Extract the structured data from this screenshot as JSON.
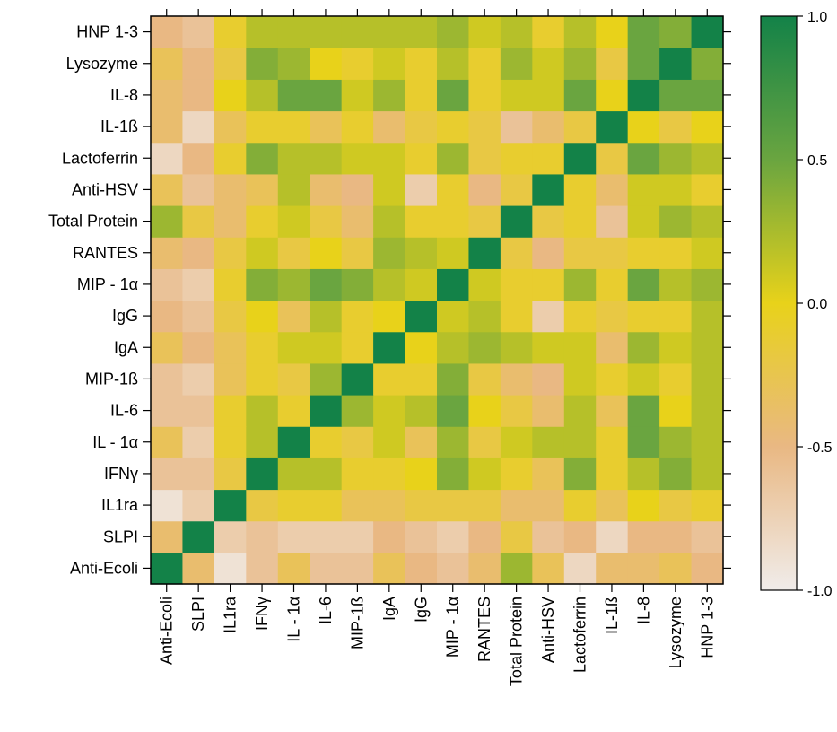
{
  "chart_data": {
    "type": "heatmap",
    "title": "",
    "xlabel": "",
    "ylabel": "",
    "x_categories": [
      "Anti-Ecoli",
      "SLPI",
      "IL1ra",
      "IFNγ",
      "IL - 1α",
      "IL-6",
      "MIP-1ß",
      "IgA",
      "IgG",
      "MIP - 1α",
      "RANTES",
      "Total Protein",
      "Anti-HSV",
      "Lactoferrin",
      "IL-1ß",
      "IL-8",
      "Lysozyme",
      "HNP 1-3"
    ],
    "y_categories_bottom_to_top": [
      "Anti-Ecoli",
      "SLPI",
      "IL1ra",
      "IFNγ",
      "IL - 1α",
      "IL-6",
      "MIP-1ß",
      "IgA",
      "IgG",
      "MIP - 1α",
      "RANTES",
      "Total Protein",
      "Anti-HSV",
      "Lactoferrin",
      "IL-1ß",
      "IL-8",
      "Lysozyme",
      "HNP 1-3"
    ],
    "values_rows_bottom_to_top": [
      [
        1.0,
        -0.4,
        -0.9,
        -0.6,
        -0.3,
        -0.6,
        -0.6,
        -0.3,
        -0.5,
        -0.6,
        -0.4,
        0.3,
        -0.3,
        -0.8,
        -0.4,
        -0.4,
        -0.3,
        -0.5
      ],
      [
        -0.4,
        1.0,
        -0.7,
        -0.6,
        -0.7,
        -0.7,
        -0.7,
        -0.5,
        -0.6,
        -0.7,
        -0.5,
        -0.2,
        -0.6,
        -0.5,
        -0.8,
        -0.5,
        -0.5,
        -0.6
      ],
      [
        -0.9,
        -0.7,
        1.0,
        -0.2,
        -0.1,
        -0.1,
        -0.3,
        -0.3,
        -0.2,
        -0.2,
        -0.2,
        -0.4,
        -0.4,
        -0.1,
        -0.3,
        0.0,
        -0.2,
        -0.1
      ],
      [
        -0.6,
        -0.6,
        -0.2,
        1.0,
        0.2,
        0.2,
        -0.1,
        -0.1,
        0.0,
        0.4,
        0.1,
        -0.1,
        -0.3,
        0.4,
        -0.1,
        0.2,
        0.4,
        0.2
      ],
      [
        -0.3,
        -0.7,
        -0.1,
        0.2,
        1.0,
        -0.1,
        -0.2,
        0.1,
        -0.3,
        0.3,
        -0.2,
        0.1,
        0.2,
        0.2,
        -0.1,
        0.5,
        0.3,
        0.2
      ],
      [
        -0.6,
        -0.6,
        -0.1,
        0.2,
        -0.1,
        1.0,
        0.3,
        0.1,
        0.2,
        0.5,
        0.0,
        -0.2,
        -0.4,
        0.2,
        -0.3,
        0.5,
        0.0,
        0.2
      ],
      [
        -0.6,
        -0.7,
        -0.3,
        -0.1,
        -0.2,
        0.3,
        1.0,
        -0.1,
        -0.1,
        0.4,
        -0.2,
        -0.4,
        -0.5,
        0.1,
        -0.1,
        0.1,
        -0.1,
        0.2
      ],
      [
        -0.3,
        -0.5,
        -0.3,
        -0.1,
        0.1,
        0.1,
        -0.1,
        1.0,
        0.0,
        0.2,
        0.3,
        0.2,
        0.1,
        0.1,
        -0.4,
        0.3,
        0.1,
        0.2
      ],
      [
        -0.5,
        -0.6,
        -0.2,
        0.0,
        -0.3,
        0.2,
        -0.1,
        0.0,
        1.0,
        0.1,
        0.2,
        -0.1,
        -0.7,
        -0.1,
        -0.2,
        -0.1,
        -0.1,
        0.2
      ],
      [
        -0.6,
        -0.7,
        -0.1,
        0.4,
        0.3,
        0.5,
        0.4,
        0.2,
        0.1,
        1.0,
        0.1,
        -0.1,
        -0.1,
        0.3,
        -0.1,
        0.5,
        0.2,
        0.3
      ],
      [
        -0.4,
        -0.5,
        -0.2,
        0.1,
        -0.2,
        0.0,
        -0.2,
        0.3,
        0.2,
        0.1,
        1.0,
        -0.2,
        -0.5,
        -0.2,
        -0.2,
        -0.1,
        -0.1,
        0.1
      ],
      [
        0.3,
        -0.2,
        -0.4,
        -0.1,
        0.1,
        -0.2,
        -0.4,
        0.2,
        -0.1,
        -0.1,
        -0.2,
        1.0,
        -0.2,
        -0.1,
        -0.6,
        0.1,
        0.3,
        0.2
      ],
      [
        -0.3,
        -0.6,
        -0.4,
        -0.3,
        0.2,
        -0.4,
        -0.5,
        0.1,
        -0.7,
        -0.1,
        -0.5,
        -0.2,
        1.0,
        -0.1,
        -0.4,
        0.1,
        0.1,
        -0.1
      ],
      [
        -0.8,
        -0.5,
        -0.1,
        0.4,
        0.2,
        0.2,
        0.1,
        0.1,
        -0.1,
        0.3,
        -0.2,
        -0.1,
        -0.1,
        1.0,
        -0.2,
        0.5,
        0.3,
        0.2
      ],
      [
        -0.4,
        -0.8,
        -0.3,
        -0.1,
        -0.1,
        -0.3,
        -0.1,
        -0.4,
        -0.2,
        -0.1,
        -0.2,
        -0.6,
        -0.4,
        -0.2,
        1.0,
        0.0,
        -0.2,
        0.0
      ],
      [
        -0.4,
        -0.5,
        0.0,
        0.2,
        0.5,
        0.5,
        0.1,
        0.3,
        -0.1,
        0.5,
        -0.1,
        0.1,
        0.1,
        0.5,
        0.0,
        1.0,
        0.5,
        0.5
      ],
      [
        -0.3,
        -0.5,
        -0.2,
        0.4,
        0.3,
        0.0,
        -0.1,
        0.1,
        -0.1,
        0.2,
        -0.1,
        0.3,
        0.1,
        0.3,
        -0.2,
        0.5,
        1.0,
        0.4
      ],
      [
        -0.5,
        -0.6,
        -0.1,
        0.2,
        0.2,
        0.2,
        0.2,
        0.2,
        0.2,
        0.3,
        0.1,
        0.2,
        -0.1,
        0.2,
        0.0,
        0.5,
        0.4,
        1.0
      ]
    ],
    "color_scale": {
      "min": -1.0,
      "max": 1.0,
      "stops": [
        {
          "value": -1.0,
          "color": "#f0ecea"
        },
        {
          "value": -0.5,
          "color": "#e9b883"
        },
        {
          "value": 0.0,
          "color": "#e8d21a"
        },
        {
          "value": 0.5,
          "color": "#6aa540"
        },
        {
          "value": 1.0,
          "color": "#138248"
        }
      ],
      "ticks": [
        1.0,
        0.5,
        0.0,
        -0.5,
        -1.0
      ],
      "tick_labels": [
        "1.0",
        "0.5",
        "0.0",
        "-0.5",
        "-1.0"
      ]
    }
  }
}
